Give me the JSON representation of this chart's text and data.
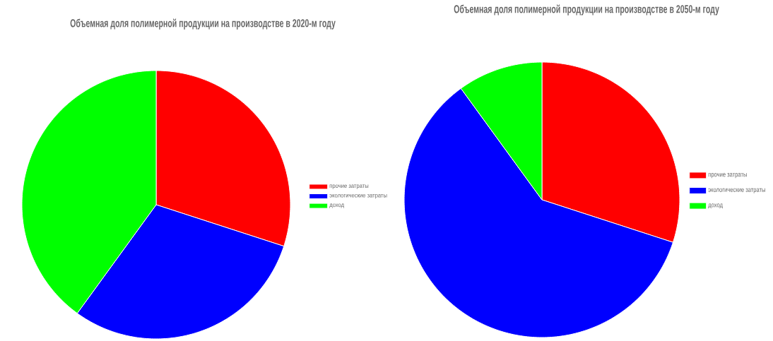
{
  "chart_data": [
    {
      "type": "pie",
      "title": "Объемная доля полимерной продукции на производстве в 2020-м году",
      "categories": [
        "прочие затраты",
        "экологические затраты",
        "доход"
      ],
      "values": [
        30,
        30,
        40
      ],
      "colors": [
        "#ff0000",
        "#0000ff",
        "#00ff00"
      ],
      "legend": "right"
    },
    {
      "type": "pie",
      "title": "Объемная доля полимерной продукции на производстве в 2050-м году",
      "categories": [
        "прочие затраты",
        "экологические затраты",
        "доход"
      ],
      "values": [
        30,
        60,
        10
      ],
      "colors": [
        "#ff0000",
        "#0000ff",
        "#00ff00"
      ],
      "legend": "right"
    }
  ]
}
